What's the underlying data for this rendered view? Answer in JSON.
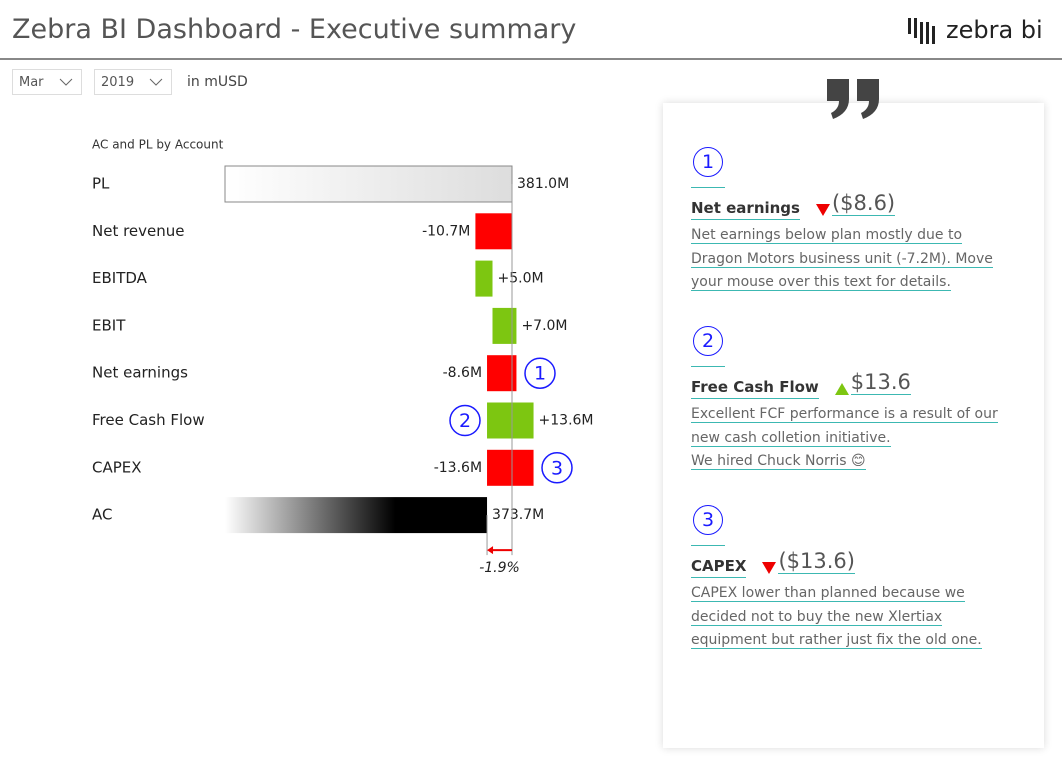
{
  "header": {
    "title": "Zebra BI Dashboard - Executive summary",
    "logo": "zebra bi"
  },
  "filters": {
    "month": "Mar",
    "year": "2019",
    "unit": "in mUSD"
  },
  "chart_data": {
    "type": "waterfall",
    "title": "AC and PL by Account",
    "categories": [
      "PL",
      "Net revenue",
      "EBITDA",
      "EBIT",
      "Net earnings",
      "Free Cash Flow",
      "CAPEX",
      "AC"
    ],
    "values": [
      381.0,
      -10.7,
      5.0,
      7.0,
      -8.6,
      13.6,
      -13.6,
      373.7
    ],
    "value_labels": [
      "381.0M",
      "-10.7M",
      "+5.0M",
      "+7.0M",
      "-8.6M",
      "+13.6M",
      "-13.6M",
      "373.7M"
    ],
    "positive_color": "#7dc611",
    "negative_color": "#ff0000",
    "variance_label": "-1.9%",
    "callouts": [
      "1",
      "2",
      "3"
    ]
  },
  "comments": [
    {
      "number": "1",
      "title": "Net earnings",
      "delta": {
        "value": -8.6,
        "label": "($8.6)"
      },
      "lines": [
        "Net earnings below plan mostly due to",
        "Dragon Motors business unit (-7.2M). Move",
        "your mouse over this text for details."
      ]
    },
    {
      "number": "2",
      "title": "Free Cash Flow",
      "delta": {
        "value": 13.6,
        "label": "$13.6"
      },
      "lines": [
        "Excellent FCF performance is a result of our",
        "new cash colletion initiative.",
        "We hired Chuck Norris 😊"
      ]
    },
    {
      "number": "3",
      "title": "CAPEX",
      "delta": {
        "value": -13.6,
        "label": "($13.6)"
      },
      "lines": [
        "CAPEX lower than planned because we",
        "decided not to buy the new Xlertiax",
        "equipment but rather just fix the old one."
      ]
    }
  ]
}
